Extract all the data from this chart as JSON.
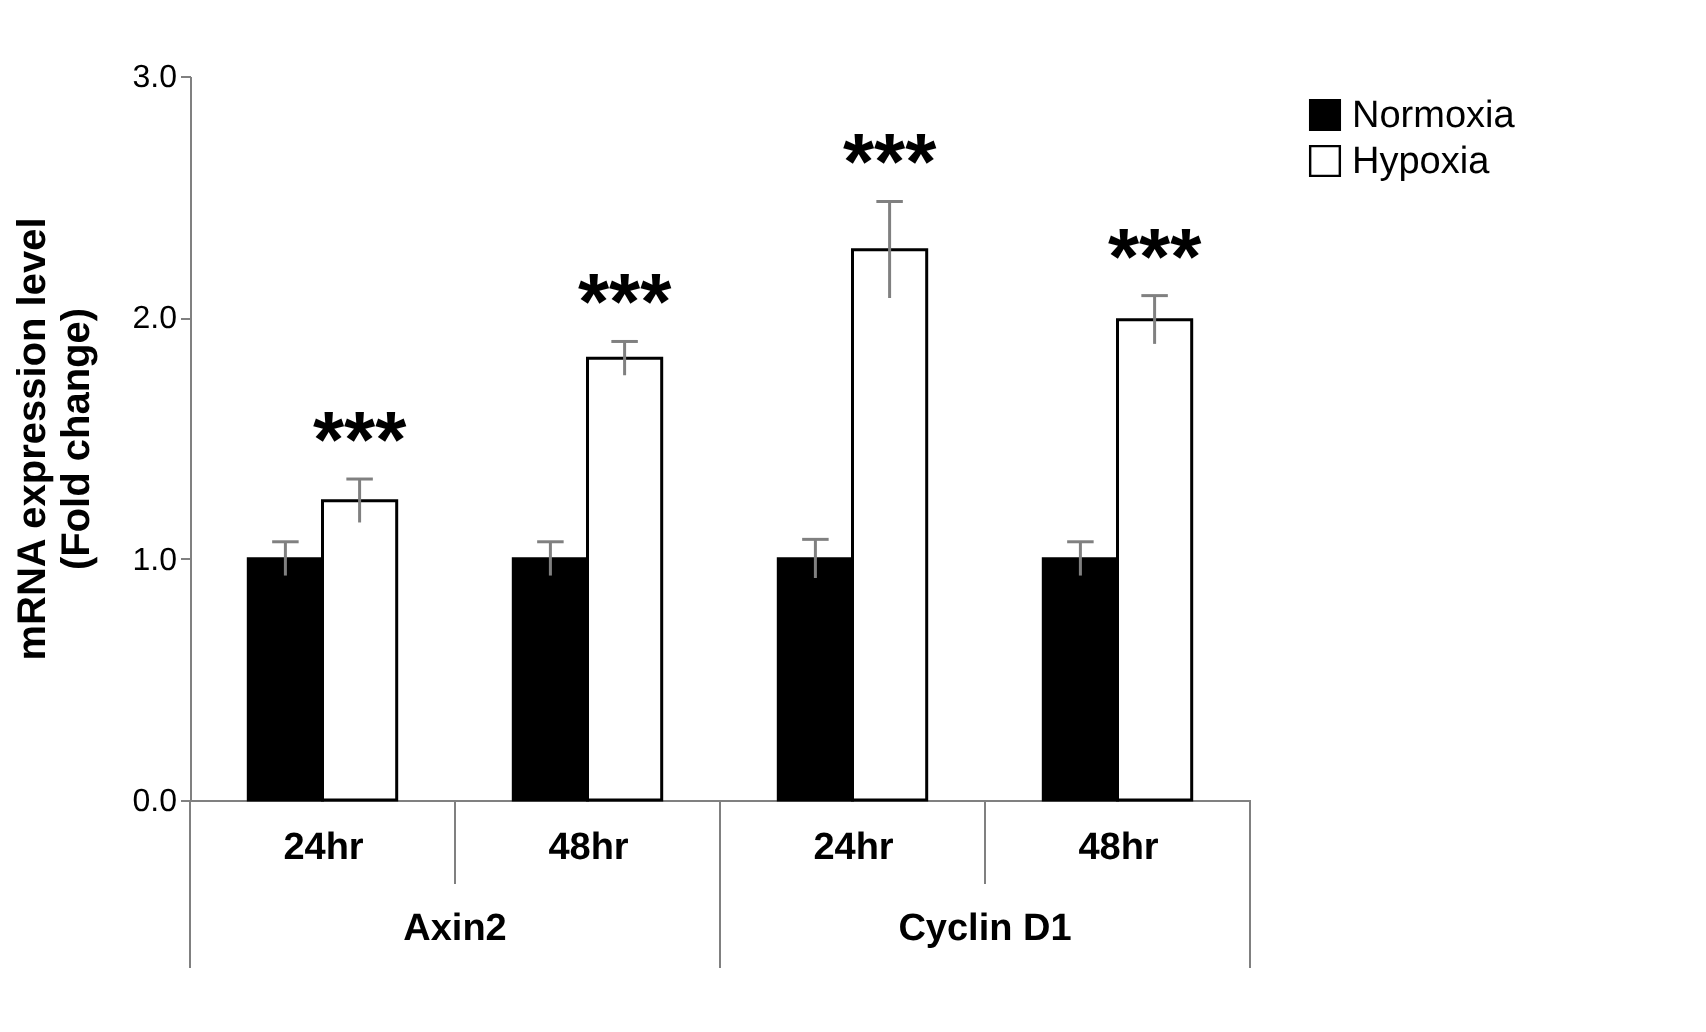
{
  "chart_data": {
    "type": "bar",
    "ylabel": "mRNA expression level\n(Fold change)",
    "categories": [
      "24hr",
      "48hr",
      "24hr",
      "48hr"
    ],
    "series": [
      {
        "name": "Normoxia",
        "color": "#000000",
        "values": [
          1.0,
          1.0,
          1.0,
          1.0
        ],
        "errors": [
          0.07,
          0.07,
          0.08,
          0.07
        ]
      },
      {
        "name": "Hypoxia",
        "color": "#ffffff",
        "values": [
          1.24,
          1.83,
          2.28,
          1.99
        ],
        "errors": [
          0.09,
          0.07,
          0.2,
          0.1
        ]
      }
    ],
    "annotations": [
      "***",
      "***",
      "***",
      "***",
      "Axin2",
      "Cyclin D1"
    ],
    "ylim": [
      0,
      3.0
    ],
    "yticks": [
      {
        "value": 0,
        "label": "0.0"
      },
      {
        "value": 1,
        "label": "1.0"
      },
      {
        "value": 2,
        "label": "2.0"
      },
      {
        "value": 3,
        "label": "3.0"
      }
    ],
    "grid": false,
    "legend": "right"
  }
}
